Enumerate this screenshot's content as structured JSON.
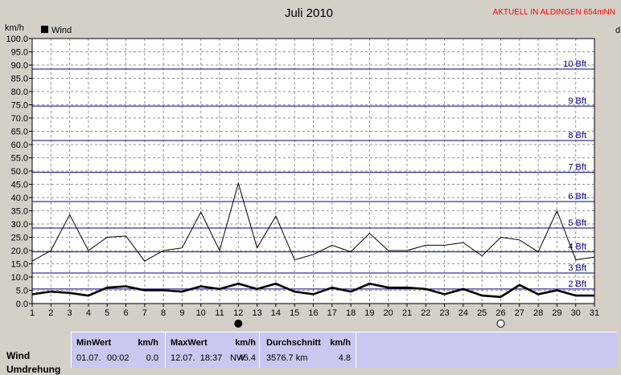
{
  "header": {
    "title": "Juli 2010",
    "station": "AKTUELL IN ALDINGEN 654mNN",
    "y_unit": "km/h",
    "legend_label": "Wind",
    "right_unit_fragment": "d"
  },
  "chart_data": {
    "type": "line",
    "title": "Juli 2010",
    "ylabel": "km/h",
    "xlabel": "",
    "ylim": [
      0,
      100
    ],
    "y_ticks": [
      "0.0",
      "5.0",
      "10.0",
      "15.0",
      "20.0",
      "25.0",
      "30.0",
      "35.0",
      "40.0",
      "45.0",
      "50.0",
      "55.0",
      "60.0",
      "65.0",
      "70.0",
      "75.0",
      "80.0",
      "85.0",
      "90.0",
      "95.0",
      "100.0"
    ],
    "x": [
      1,
      2,
      3,
      4,
      5,
      6,
      7,
      8,
      9,
      10,
      11,
      12,
      13,
      14,
      15,
      16,
      17,
      18,
      19,
      20,
      21,
      22,
      23,
      24,
      25,
      26,
      27,
      28,
      29,
      30,
      31
    ],
    "x_tick_labels": [
      "1",
      "2",
      "3",
      "4",
      "5",
      "6",
      "7",
      "8",
      "9",
      "10",
      "11",
      "12",
      "13",
      "14",
      "15",
      "16",
      "17",
      "18",
      "19",
      "20",
      "21",
      "22",
      "23",
      "24",
      "25",
      "26",
      "27",
      "28",
      "29",
      "30",
      "31"
    ],
    "grid": true,
    "legend_position": "top-left",
    "series": [
      {
        "name": "Wind",
        "role": "average",
        "color": "#000000",
        "values": [
          3.5,
          4.5,
          4.0,
          3.0,
          6.0,
          6.5,
          5.0,
          5.0,
          4.5,
          6.5,
          5.5,
          7.5,
          5.5,
          7.5,
          4.5,
          3.5,
          6.0,
          4.5,
          7.5,
          6.0,
          6.0,
          5.5,
          3.5,
          5.5,
          3.0,
          2.5,
          7.0,
          3.5,
          5.0,
          3.0,
          3.0
        ]
      },
      {
        "role": "max",
        "color": "#000000",
        "values": [
          16.0,
          20.0,
          33.5,
          20.0,
          25.0,
          25.5,
          16.0,
          20.0,
          21.0,
          34.5,
          20.0,
          45.4,
          21.0,
          33.0,
          16.5,
          18.5,
          22.0,
          19.5,
          26.5,
          20.0,
          20.0,
          22.0,
          22.0,
          23.0,
          18.0,
          25.0,
          24.0,
          19.5,
          35.0,
          16.5,
          17.5
        ]
      }
    ],
    "beaufort_lines": [
      {
        "label": "2 Bft",
        "value": 5.5
      },
      {
        "label": "3 Bft",
        "value": 11.5
      },
      {
        "label": "4 Bft",
        "value": 19.5
      },
      {
        "label": "5 Bft",
        "value": 28.5
      },
      {
        "label": "6 Bft",
        "value": 38.5
      },
      {
        "label": "7 Bft",
        "value": 49.5
      },
      {
        "label": "8 Bft",
        "value": 61.5
      },
      {
        "label": "9 Bft",
        "value": 74.5
      },
      {
        "label": "10 Bft",
        "value": 88.5
      }
    ],
    "line_color": "#000080",
    "markers": [
      {
        "day": 12,
        "symbol": "full-moon-dark"
      },
      {
        "day": 26,
        "symbol": "new-moon-light"
      }
    ]
  },
  "table": {
    "row_label": "Wind",
    "row_label_2": "Umdrehung",
    "min": {
      "header": "MinWert",
      "unit": "km/h",
      "date": "01.07.",
      "time": "00:02",
      "value": "0.0"
    },
    "max": {
      "header": "MaxWert",
      "unit": "km/h",
      "datetime": "12.07.  18:37",
      "dir": "NW",
      "value": "45.4"
    },
    "avg": {
      "header": "Durchschnitt",
      "unit": "km/h",
      "distance": "3576.7 km",
      "value": "4.8"
    }
  }
}
